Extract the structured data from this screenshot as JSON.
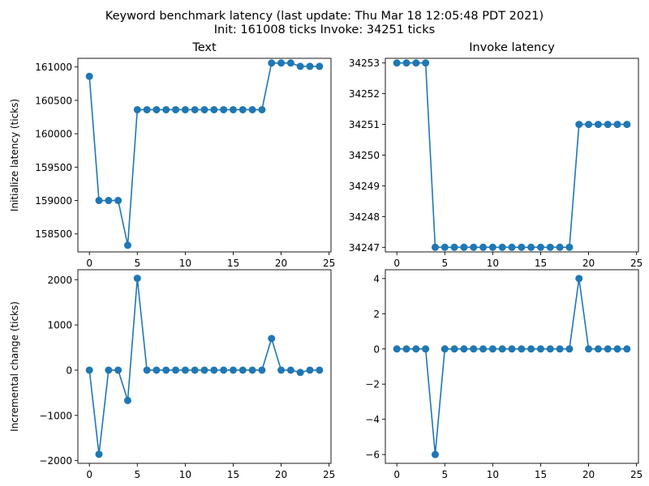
{
  "figure": {
    "title_line1": "Keyword benchmark latency (last update: Thu Mar 18 12:05:48 PDT 2021)",
    "title_line2": "Init: 161008 ticks Invoke: 34251 ticks"
  },
  "colors": {
    "series": "#1f77b4",
    "axes": "#000000",
    "background": "#ffffff"
  },
  "chart_data": [
    {
      "type": "line",
      "title": "Text",
      "xlabel": "",
      "ylabel": "Initialize latency (ticks)",
      "xlim": [
        -1.2,
        25.2
      ],
      "ylim": [
        158230,
        161130
      ],
      "xticks": [
        0,
        5,
        10,
        15,
        20,
        25
      ],
      "yticks": [
        158500,
        159000,
        159500,
        160000,
        160500,
        161000
      ],
      "grid": false,
      "marker": "circle",
      "x": [
        0,
        1,
        2,
        3,
        4,
        5,
        6,
        7,
        8,
        9,
        10,
        11,
        12,
        13,
        14,
        15,
        16,
        17,
        18,
        19,
        20,
        21,
        22,
        23,
        24
      ],
      "y": [
        160860,
        159000,
        159000,
        159000,
        158330,
        160360,
        160360,
        160360,
        160360,
        160360,
        160360,
        160360,
        160360,
        160360,
        160360,
        160360,
        160360,
        160360,
        160360,
        161060,
        161060,
        161060,
        161010,
        161010,
        161010
      ]
    },
    {
      "type": "line",
      "title": "Invoke latency",
      "xlabel": "",
      "ylabel": "",
      "xlim": [
        -1.2,
        25.2
      ],
      "ylim": [
        34246.85,
        34253.15
      ],
      "xticks": [
        0,
        5,
        10,
        15,
        20,
        25
      ],
      "yticks": [
        34247,
        34248,
        34249,
        34250,
        34251,
        34252,
        34253
      ],
      "grid": false,
      "marker": "circle",
      "x": [
        0,
        1,
        2,
        3,
        4,
        5,
        6,
        7,
        8,
        9,
        10,
        11,
        12,
        13,
        14,
        15,
        16,
        17,
        18,
        19,
        20,
        21,
        22,
        23,
        24
      ],
      "y": [
        34253,
        34253,
        34253,
        34253,
        34247,
        34247,
        34247,
        34247,
        34247,
        34247,
        34247,
        34247,
        34247,
        34247,
        34247,
        34247,
        34247,
        34247,
        34247,
        34251,
        34251,
        34251,
        34251,
        34251,
        34251
      ]
    },
    {
      "type": "line",
      "title": "",
      "xlabel": "",
      "ylabel": "Incremental change (ticks)",
      "xlim": [
        -1.2,
        25.2
      ],
      "ylim": [
        -2060,
        2220
      ],
      "xticks": [
        0,
        5,
        10,
        15,
        20,
        25
      ],
      "yticks": [
        -2000,
        -1000,
        0,
        1000,
        2000
      ],
      "grid": false,
      "marker": "circle",
      "x": [
        0,
        1,
        2,
        3,
        4,
        5,
        6,
        7,
        8,
        9,
        10,
        11,
        12,
        13,
        14,
        15,
        16,
        17,
        18,
        19,
        20,
        21,
        22,
        23,
        24
      ],
      "y": [
        0,
        -1860,
        0,
        0,
        -670,
        2030,
        0,
        0,
        0,
        0,
        0,
        0,
        0,
        0,
        0,
        0,
        0,
        0,
        0,
        700,
        0,
        0,
        -50,
        0,
        0
      ]
    },
    {
      "type": "line",
      "title": "",
      "xlabel": "",
      "ylabel": "",
      "xlim": [
        -1.2,
        25.2
      ],
      "ylim": [
        -6.5,
        4.5
      ],
      "xticks": [
        0,
        5,
        10,
        15,
        20,
        25
      ],
      "yticks": [
        -6,
        -4,
        -2,
        0,
        2,
        4
      ],
      "grid": false,
      "marker": "circle",
      "x": [
        0,
        1,
        2,
        3,
        4,
        5,
        6,
        7,
        8,
        9,
        10,
        11,
        12,
        13,
        14,
        15,
        16,
        17,
        18,
        19,
        20,
        21,
        22,
        23,
        24
      ],
      "y": [
        0,
        0,
        0,
        0,
        -6,
        0,
        0,
        0,
        0,
        0,
        0,
        0,
        0,
        0,
        0,
        0,
        0,
        0,
        0,
        4,
        0,
        0,
        0,
        0,
        0
      ]
    }
  ]
}
